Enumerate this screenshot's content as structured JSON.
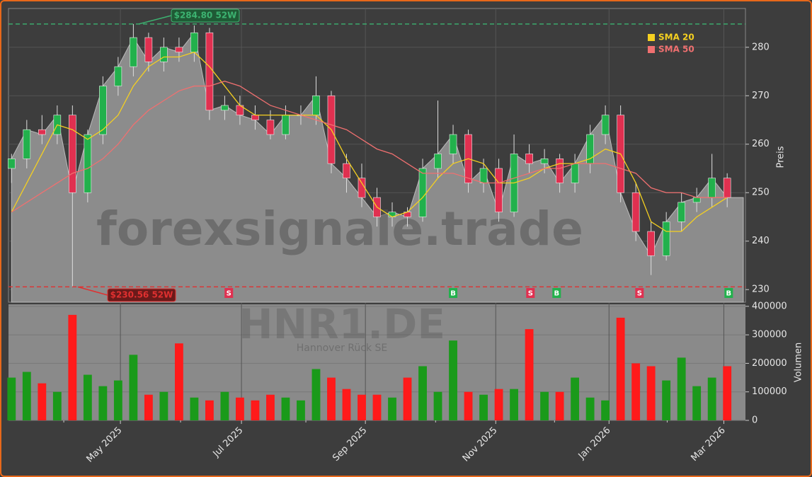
{
  "chart_data": {
    "type": "candlestick",
    "watermark": "forexsignale.trade",
    "symbol": "HNR1.DE",
    "company": "Hannover Rück SE",
    "ylabel": "Preis",
    "volume_label": "Volumen",
    "xlim": [
      -0.2,
      48.2
    ],
    "xticks": [
      {
        "value": 7.15,
        "label": "May 2025"
      },
      {
        "value": 15.1,
        "label": "Jul 2025"
      },
      {
        "value": 23.24,
        "label": "Sep 2025"
      },
      {
        "value": 31.8,
        "label": "Nov 2025"
      },
      {
        "value": 39.24,
        "label": "Jan 2026"
      },
      {
        "value": 46.78,
        "label": "Mar 2026"
      }
    ],
    "x_minor_ticks": [
      3.43,
      11.1,
      19.33,
      27.85,
      35.66,
      43.06
    ],
    "ylim": [
      227.4,
      288
    ],
    "yticks": [
      230,
      240,
      250,
      260,
      270,
      280
    ],
    "volume_ylim": [
      0,
      407000
    ],
    "volume_yticks": [
      0,
      100000,
      200000,
      300000,
      400000
    ],
    "grid": true,
    "up_color": "#22b14c",
    "down_color": "#e03050",
    "area_color": "#8c8c8c",
    "x": [
      0,
      1,
      2,
      3,
      4,
      5,
      6,
      7,
      8,
      9,
      10,
      11,
      12,
      13,
      14,
      15,
      16,
      17,
      18,
      19,
      20,
      21,
      22,
      23,
      24,
      25,
      26,
      27,
      28,
      29,
      30,
      31,
      32,
      33,
      34,
      35,
      36,
      37,
      38,
      39,
      40,
      41,
      42,
      43,
      44,
      45,
      46,
      47
    ],
    "open": [
      255,
      257,
      263,
      262,
      266,
      250,
      262,
      272,
      276,
      282,
      277,
      280,
      279,
      283,
      267,
      268,
      266,
      265,
      262,
      266,
      266,
      270,
      256,
      253,
      249,
      245,
      246,
      245,
      255,
      258,
      262,
      252,
      255,
      246,
      258,
      256,
      257,
      252,
      256,
      262,
      266,
      250,
      242,
      237,
      244,
      248,
      249,
      253
    ],
    "high": [
      258,
      265,
      266,
      268,
      268,
      263,
      274,
      278,
      284.8,
      283,
      282,
      282,
      284.5,
      284,
      270,
      270,
      268,
      267,
      268,
      268,
      274,
      271,
      258,
      256,
      251,
      248,
      247,
      257,
      269,
      264,
      263,
      257,
      257,
      262,
      260,
      259,
      258,
      258,
      264,
      268,
      268,
      252,
      244,
      246,
      250,
      251,
      258,
      254
    ],
    "low": [
      252,
      255,
      260,
      260,
      230.56,
      248,
      260,
      270,
      274,
      275,
      275,
      277,
      277,
      265,
      265,
      264,
      263,
      261,
      261,
      264,
      264,
      254,
      250,
      247,
      243,
      243,
      243,
      244,
      253,
      256,
      250,
      250,
      244,
      245,
      254,
      254,
      250,
      250,
      254,
      260,
      248,
      240,
      233,
      236,
      242,
      246,
      247,
      247
    ],
    "close": [
      257,
      263,
      262,
      266,
      250,
      262,
      272,
      276,
      282,
      277,
      280,
      279,
      283,
      267,
      268,
      266,
      265,
      262,
      266,
      266,
      270,
      256,
      253,
      249,
      245,
      246,
      245,
      255,
      258,
      262,
      252,
      255,
      246,
      258,
      256,
      257,
      252,
      256,
      262,
      266,
      250,
      242,
      237,
      244,
      248,
      249,
      253,
      249
    ],
    "volume": [
      150000,
      170000,
      130000,
      100000,
      370000,
      160000,
      120000,
      140000,
      230000,
      90000,
      100000,
      270000,
      80000,
      70000,
      100000,
      80000,
      70000,
      90000,
      80000,
      70000,
      180000,
      150000,
      110000,
      90000,
      90000,
      80000,
      150000,
      190000,
      100000,
      280000,
      100000,
      90000,
      110000,
      110000,
      320000,
      100000,
      100000,
      150000,
      80000,
      70000,
      360000,
      200000,
      190000,
      140000,
      220000,
      120000,
      150000,
      190000
    ],
    "series": [
      {
        "name": "SMA 20",
        "color": "#f5d020",
        "values": [
          246,
          252,
          258,
          264,
          263,
          261,
          263,
          266,
          272,
          276,
          278,
          278,
          279,
          276,
          272,
          268,
          266,
          266,
          266,
          266,
          266,
          263,
          257,
          252,
          247,
          245,
          246,
          249,
          253,
          256,
          257,
          256,
          252,
          252,
          253,
          255,
          256,
          256,
          257,
          259,
          258,
          252,
          244,
          242,
          242,
          245,
          247,
          249
        ]
      },
      {
        "name": "SMA 50",
        "color": "#f07070",
        "values": [
          246,
          248,
          250,
          252,
          254,
          255,
          257,
          260,
          264,
          267,
          269,
          271,
          272,
          272,
          273,
          272,
          270,
          268,
          267,
          266,
          265,
          264,
          263,
          261,
          259,
          258,
          256,
          254,
          254,
          254,
          253,
          252,
          252,
          253,
          254,
          255,
          255,
          256,
          256,
          256,
          255,
          254,
          251,
          250,
          250,
          249,
          249,
          249
        ]
      }
    ],
    "high_52w": {
      "value": 284.8,
      "label": "$284.80 52W",
      "color": "#3cb371"
    },
    "low_52w": {
      "value": 230.56,
      "label": "$230.56 52W",
      "color": "#e03030"
    },
    "signals": [
      {
        "x": 14.27,
        "label": "S"
      },
      {
        "x": 29.0,
        "label": "B"
      },
      {
        "x": 34.08,
        "label": "S"
      },
      {
        "x": 35.8,
        "label": "B"
      },
      {
        "x": 41.24,
        "label": "S"
      },
      {
        "x": 47.1,
        "label": "B"
      }
    ]
  }
}
